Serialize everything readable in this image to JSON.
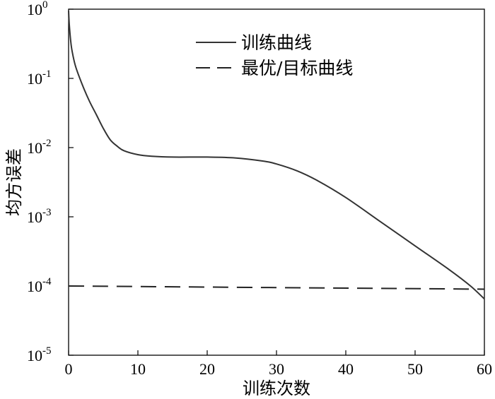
{
  "chart_data": {
    "type": "line",
    "xlabel": "训练次数",
    "ylabel": "均方误差",
    "xlim": [
      0,
      60
    ],
    "ylim": [
      1e-05,
      1
    ],
    "yscale": "log",
    "grid": false,
    "legend_position": "top-right",
    "x_ticks": [
      "0",
      "10",
      "20",
      "30",
      "40",
      "50",
      "60"
    ],
    "y_ticks": [
      {
        "base": "10",
        "exp": "-5"
      },
      {
        "base": "10",
        "exp": "-4"
      },
      {
        "base": "10",
        "exp": "-3"
      },
      {
        "base": "10",
        "exp": "-2"
      },
      {
        "base": "10",
        "exp": "-1"
      },
      {
        "base": "10",
        "exp": "0"
      }
    ],
    "series": [
      {
        "name": "训练曲线",
        "style": "solid",
        "x": [
          0,
          0.1,
          0.3,
          0.5,
          1,
          2,
          3,
          4,
          5,
          6,
          7,
          8,
          10,
          12,
          15,
          20,
          24,
          28,
          30,
          33,
          36,
          40,
          45,
          50,
          55,
          58,
          60
        ],
        "y": [
          0.95,
          0.6,
          0.35,
          0.25,
          0.15,
          0.08,
          0.047,
          0.03,
          0.019,
          0.013,
          0.0105,
          0.009,
          0.0079,
          0.0075,
          0.0073,
          0.0073,
          0.0071,
          0.0064,
          0.0058,
          0.0046,
          0.0033,
          0.0019,
          0.00085,
          0.00038,
          0.00017,
          0.0001,
          6.5e-05
        ]
      },
      {
        "name": "最优/目标曲线",
        "style": "dashed",
        "x": [
          0,
          60
        ],
        "y": [
          0.0001,
          9e-05
        ]
      }
    ]
  }
}
